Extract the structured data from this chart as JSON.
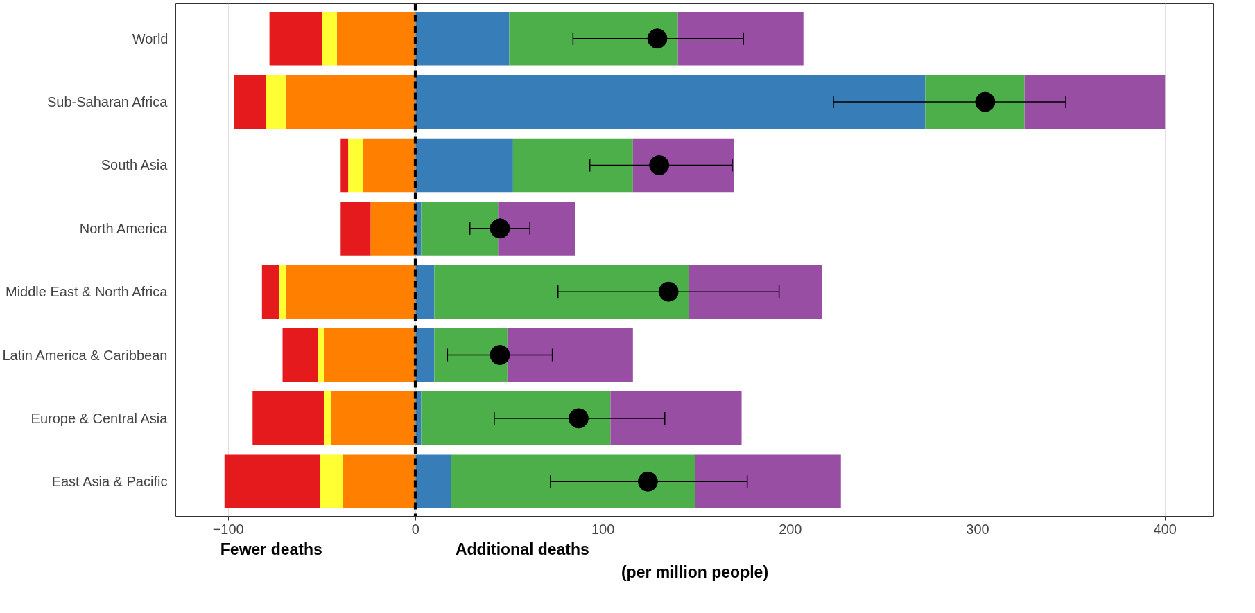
{
  "chart_data": {
    "type": "bar",
    "orientation": "horizontal",
    "stacked": true,
    "categories": [
      "World",
      "Sub-Saharan Africa",
      "South Asia",
      "North America",
      "Middle East & North Africa",
      "Latin America & Caribbean",
      "Europe & Central Asia",
      "East Asia & Pacific"
    ],
    "series": [
      {
        "color": "#ff7f00",
        "values": [
          -42,
          -69,
          -28,
          -24,
          -69,
          -49,
          -45,
          -39
        ]
      },
      {
        "color": "#ffff33",
        "values": [
          -8,
          -11,
          -8,
          0,
          -4,
          -3,
          -4,
          -12
        ]
      },
      {
        "color": "#e41a1c",
        "values": [
          -28,
          -17,
          -4,
          -16,
          -9,
          -19,
          -38,
          -51
        ]
      },
      {
        "color": "#377eb8",
        "values": [
          50,
          272,
          52,
          3,
          10,
          10,
          3,
          19
        ]
      },
      {
        "color": "#4daf4a",
        "values": [
          90,
          53,
          64,
          41,
          136,
          39,
          101,
          130
        ]
      },
      {
        "color": "#984ea3",
        "values": [
          67,
          75,
          54,
          41,
          71,
          67,
          70,
          78
        ]
      },
      {
        "type": "scatter",
        "color": "#000000",
        "marker": "circle",
        "values": [
          129,
          304,
          130,
          45,
          135,
          45,
          87,
          124
        ],
        "errors": [
          [
            84,
            175
          ],
          [
            223,
            347
          ],
          [
            93,
            169
          ],
          [
            29,
            61
          ],
          [
            76,
            194
          ],
          [
            17,
            73
          ],
          [
            42,
            133
          ],
          [
            72,
            177
          ]
        ]
      }
    ],
    "xlim": [
      -128,
      426
    ],
    "xticks": [
      -100,
      0,
      100,
      200,
      300,
      400
    ],
    "grid": "x",
    "xlabel": "(per million people)",
    "annotations": [
      "Fewer deaths",
      "Additional deaths"
    ],
    "ref_lines": [
      {
        "axis": "x",
        "value": 0,
        "color": "#000000",
        "line_style": "dashed"
      }
    ]
  }
}
